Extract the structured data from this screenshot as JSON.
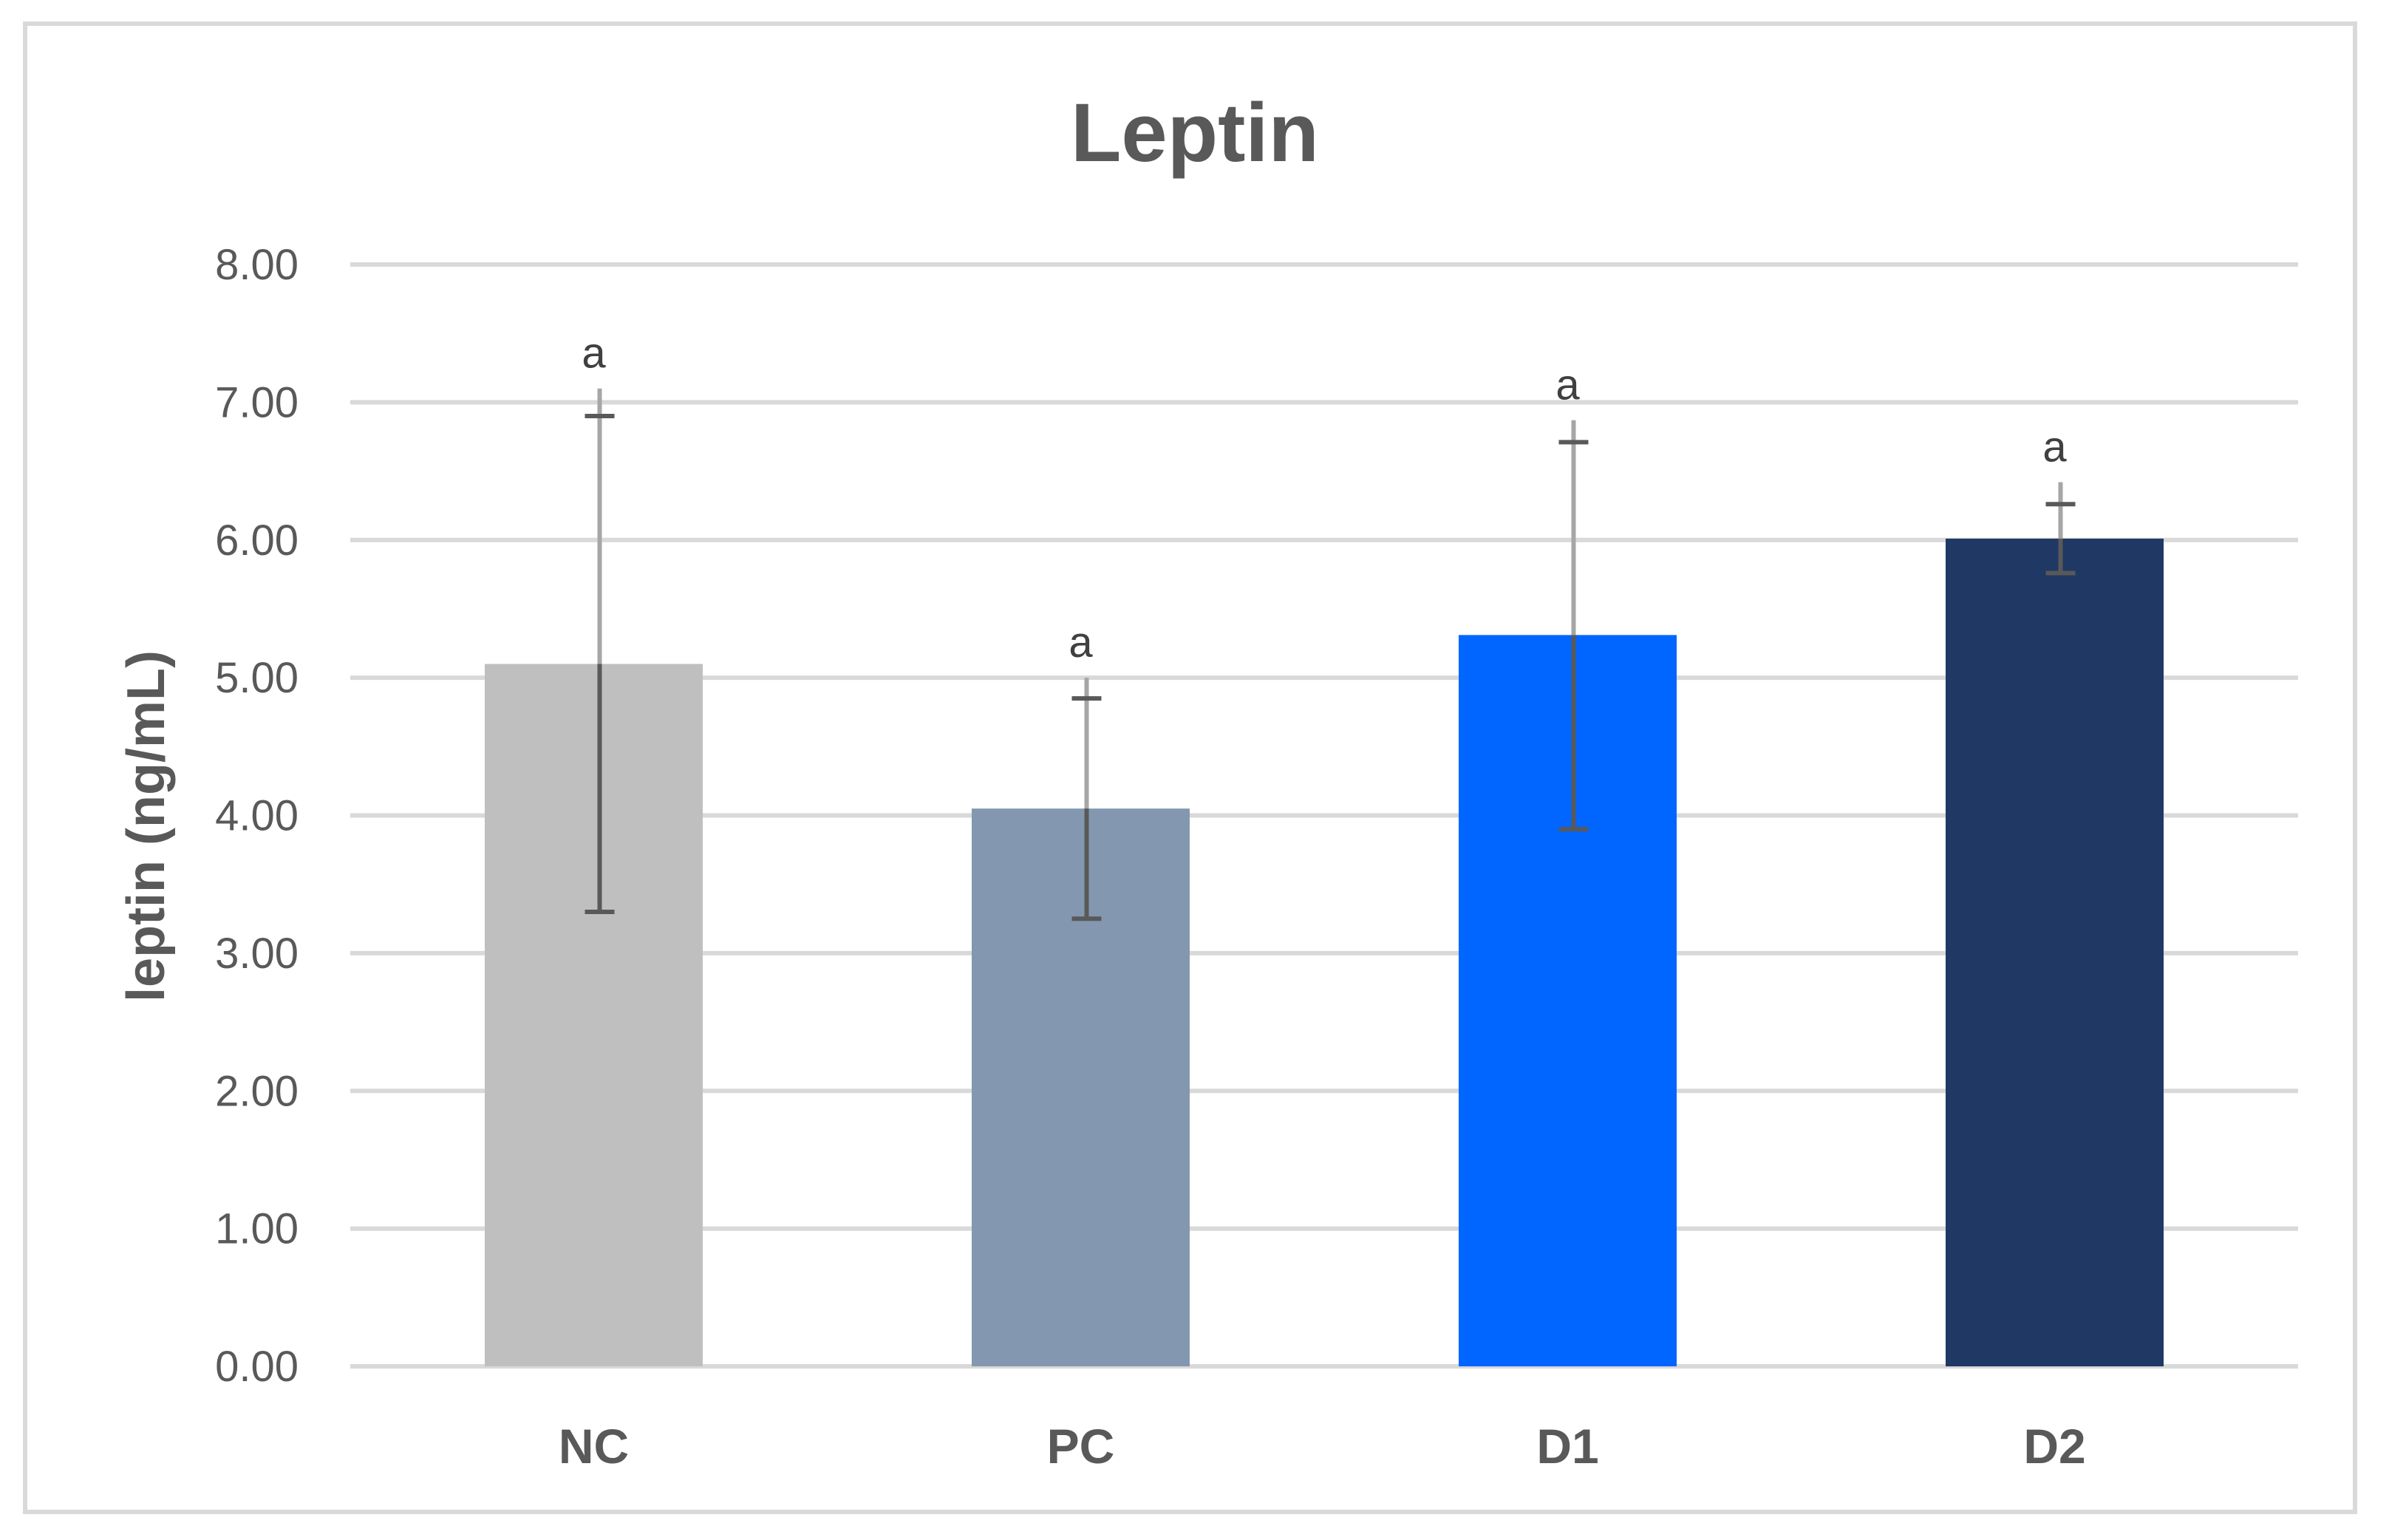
{
  "chart_data": {
    "type": "bar",
    "title": "Leptin",
    "xlabel": "",
    "ylabel": "leptin (ng/mL)",
    "ylim": [
      0,
      8
    ],
    "yticks": [
      "0.00",
      "1.00",
      "2.00",
      "3.00",
      "4.00",
      "5.00",
      "6.00",
      "7.00",
      "8.00"
    ],
    "categories": [
      "NC",
      "PC",
      "D1",
      "D2"
    ],
    "values": [
      5.1,
      4.05,
      5.31,
      6.01
    ],
    "error_upper": [
      7.1,
      5.0,
      6.87,
      6.42
    ],
    "error_lower": [
      3.3,
      3.25,
      3.9,
      5.76
    ],
    "error_cap": [
      6.9,
      4.85,
      6.71,
      6.26
    ],
    "colors": [
      "#bfbfbf",
      "#8497b0",
      "#0066ff",
      "#203864"
    ],
    "significance": [
      "a",
      "a",
      "a",
      "a"
    ],
    "grid": true,
    "legend": "none"
  }
}
